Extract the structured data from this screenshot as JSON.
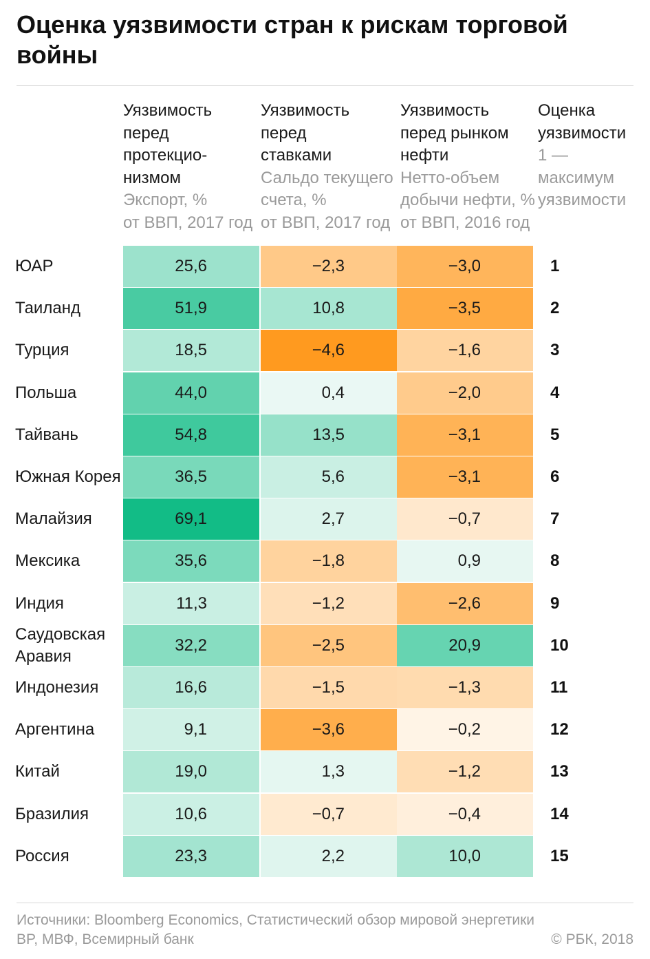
{
  "title": "Оценка уязвимости стран к рискам торговой войны",
  "columns": [
    {
      "head": [
        "Уязвимость",
        "перед",
        "протекцио-",
        "низмом"
      ],
      "sub": [
        "Экспорт, %",
        "от ВВП, 2017 год"
      ]
    },
    {
      "head": [
        "Уязвимость",
        "перед",
        "ставками"
      ],
      "sub": [
        "Сальдо текущего",
        "счета, %",
        "от ВВП, 2017 год"
      ]
    },
    {
      "head": [
        "Уязвимость",
        "перед рынком",
        "нефти"
      ],
      "sub": [
        "Нетто-объем",
        "добычи нефти, %",
        "от ВВП, 2016 год"
      ]
    },
    {
      "head": [
        "Оценка",
        "уязвимости"
      ],
      "sub": [
        "1 —",
        "максимум",
        "уязвимости"
      ]
    }
  ],
  "colors": {
    "green_strong": "#12bc86",
    "green_light": "#edf9f5",
    "orange_strong": "#ff9a1f",
    "orange_light": "#fff8f0",
    "neutral": "#fbfbfb"
  },
  "chart_data": {
    "type": "table",
    "rows": [
      {
        "country": "ЮАР",
        "export": "25,6",
        "current_account": "−2,3",
        "oil": "−3,0",
        "rank": "1"
      },
      {
        "country": "Таиланд",
        "export": "51,9",
        "current_account": "10,8",
        "oil": "−3,5",
        "rank": "2"
      },
      {
        "country": "Турция",
        "export": "18,5",
        "current_account": "−4,6",
        "oil": "−1,6",
        "rank": "3"
      },
      {
        "country": "Польша",
        "export": "44,0",
        "current_account": "0,4",
        "oil": "−2,0",
        "rank": "4"
      },
      {
        "country": "Тайвань",
        "export": "54,8",
        "current_account": "13,5",
        "oil": "−3,1",
        "rank": "5"
      },
      {
        "country": "Южная Корея",
        "export": "36,5",
        "current_account": "5,6",
        "oil": "−3,1",
        "rank": "6"
      },
      {
        "country": "Малайзия",
        "export": "69,1",
        "current_account": "2,7",
        "oil": "−0,7",
        "rank": "7"
      },
      {
        "country": "Мексика",
        "export": "35,6",
        "current_account": "−1,8",
        "oil": "0,9",
        "rank": "8"
      },
      {
        "country": "Индия",
        "export": "11,3",
        "current_account": "−1,2",
        "oil": "−2,6",
        "rank": "9"
      },
      {
        "country": "Саудовская Аравия",
        "export": "32,2",
        "current_account": "−2,5",
        "oil": "20,9",
        "rank": "10"
      },
      {
        "country": "Индонезия",
        "export": "16,6",
        "current_account": "−1,5",
        "oil": "−1,3",
        "rank": "11"
      },
      {
        "country": "Аргентина",
        "export": "9,1",
        "current_account": "−3,6",
        "oil": "−0,2",
        "rank": "12"
      },
      {
        "country": "Китай",
        "export": "19,0",
        "current_account": "1,3",
        "oil": "−1,2",
        "rank": "13"
      },
      {
        "country": "Бразилия",
        "export": "10,6",
        "current_account": "−0,7",
        "oil": "−0,4",
        "rank": "14"
      },
      {
        "country": "Россия",
        "export": "23,3",
        "current_account": "2,2",
        "oil": "10,0",
        "rank": "15"
      }
    ]
  },
  "footer": {
    "source": "Источники: Bloomberg Economics, Статистический обзор мировой энергетики BP, МВФ, Всемирный банк",
    "copyright": "© РБК, 2018"
  }
}
